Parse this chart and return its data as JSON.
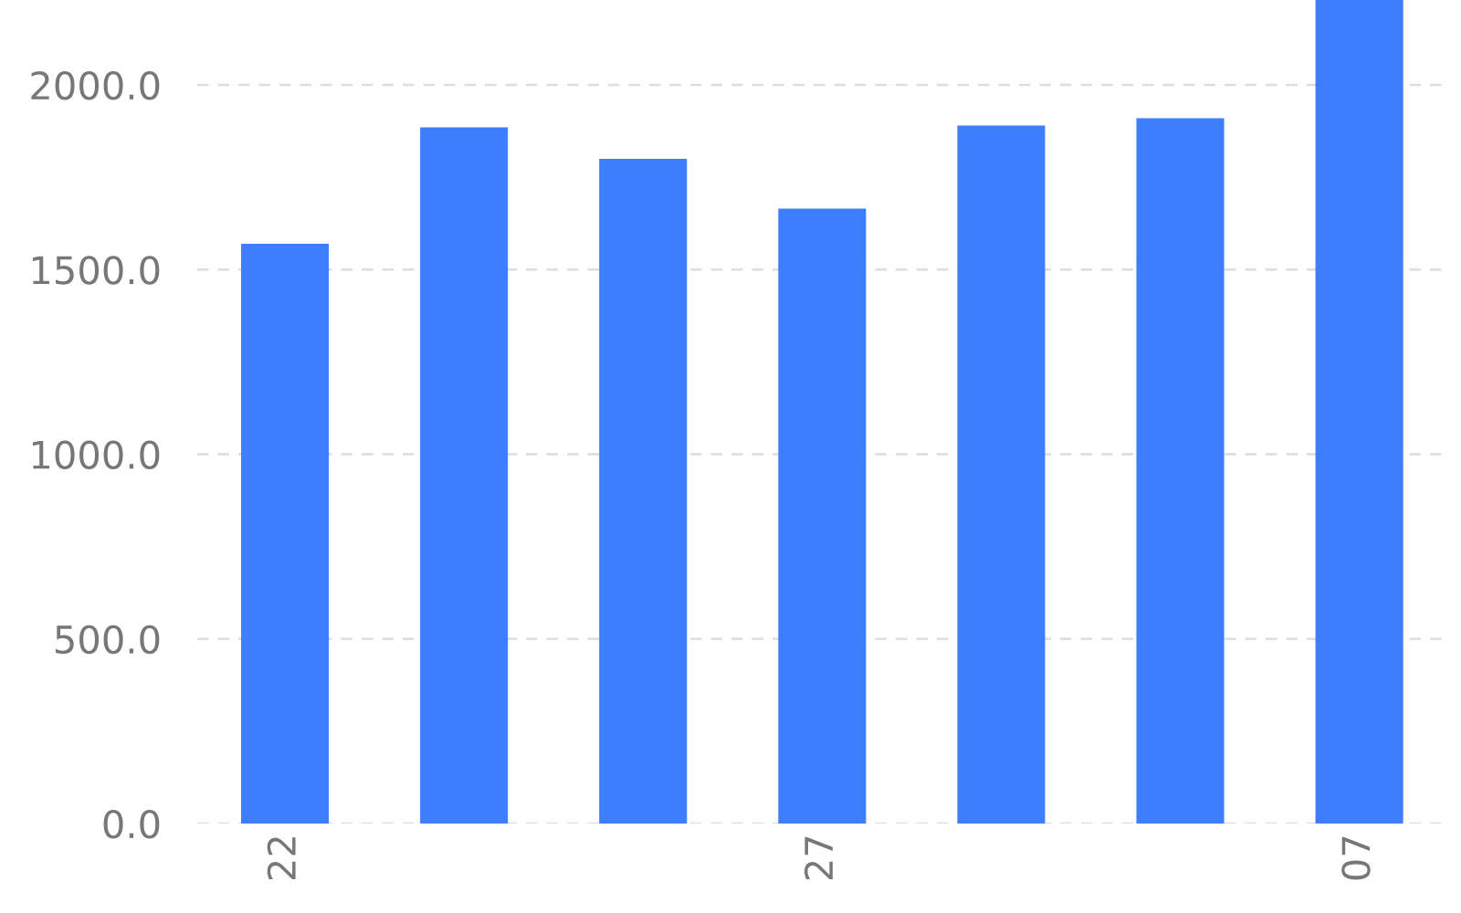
{
  "chart_data": {
    "type": "bar",
    "categories": [
      "22",
      null,
      null,
      "27",
      null,
      null,
      "07"
    ],
    "values": [
      1570,
      1885,
      1800,
      1665,
      1890,
      1910,
      2230
    ],
    "color": "#3d7efc",
    "ylim": [
      0,
      2230
    ],
    "yticks": [
      {
        "value": 0,
        "label": "0.0"
      },
      {
        "value": 500,
        "label": "500.0"
      },
      {
        "value": 1000,
        "label": "1000.0"
      },
      {
        "value": 1500,
        "label": "1500.0"
      },
      {
        "value": 2000,
        "label": "2000.0"
      }
    ],
    "grid": "y"
  }
}
